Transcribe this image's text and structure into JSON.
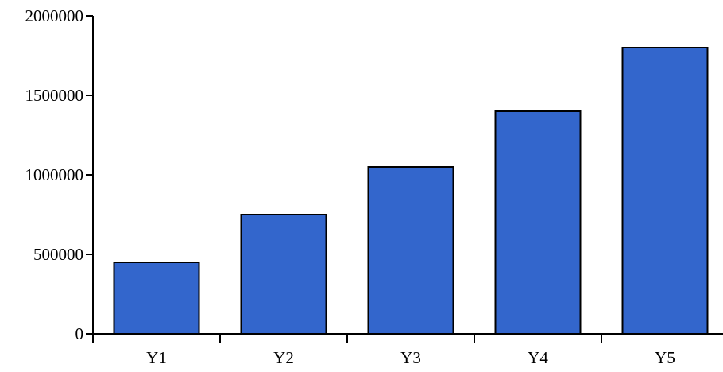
{
  "chart_data": {
    "type": "bar",
    "title": "",
    "xlabel": "",
    "ylabel": "",
    "categories": [
      "Y1",
      "Y2",
      "Y3",
      "Y4",
      "Y5"
    ],
    "values": [
      450000,
      750000,
      1050000,
      1400000,
      1800000
    ],
    "ylim": [
      0,
      2000000
    ],
    "yticks": [
      0,
      500000,
      1000000,
      1500000,
      2000000
    ],
    "ytick_labels": [
      "0",
      "500000",
      "1000000",
      "1500000",
      "2000000"
    ],
    "grid": false,
    "legend": "none",
    "bar_color": "#3366CC",
    "edge_color": "#000000"
  }
}
